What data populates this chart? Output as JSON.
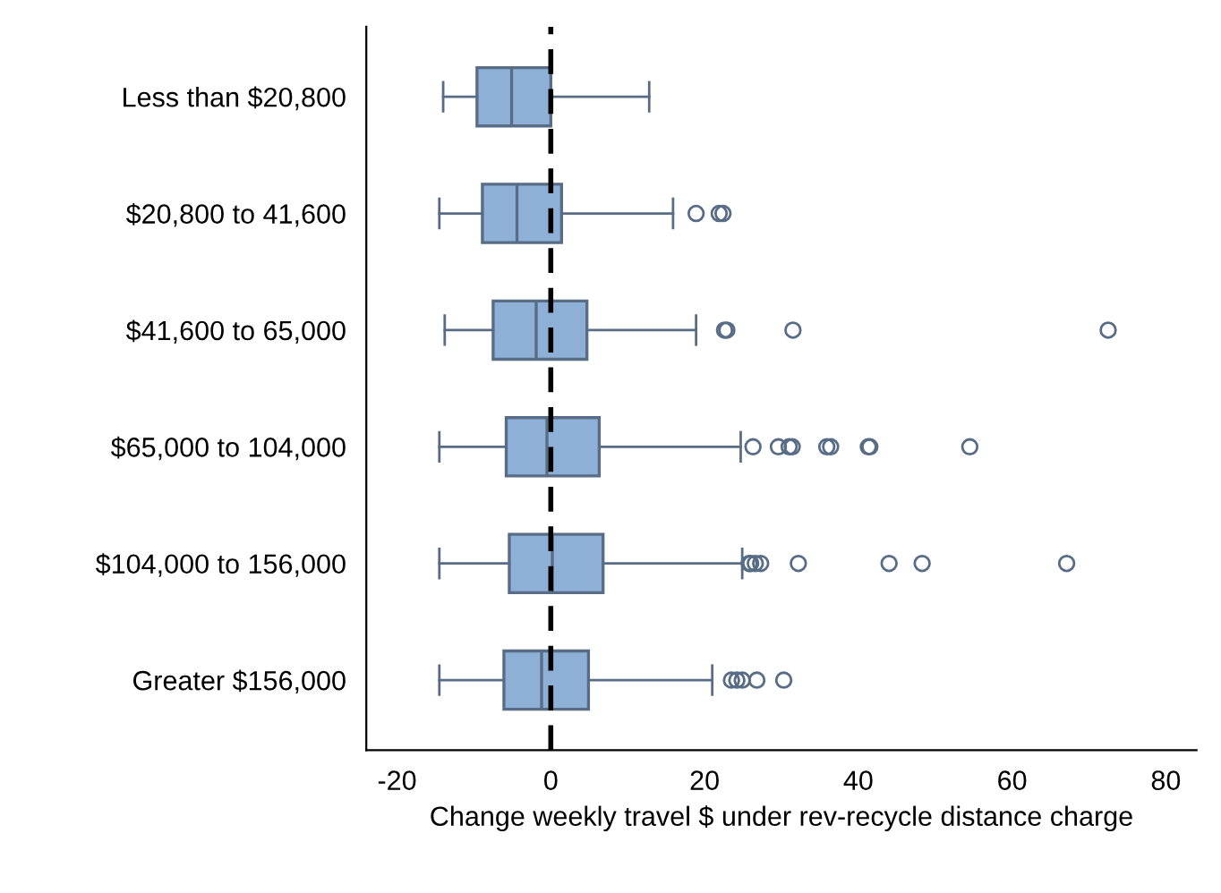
{
  "chart_data": {
    "type": "box",
    "orientation": "horizontal",
    "xlabel": "Change weekly travel $ under rev-recycle distance charge",
    "categories": [
      "Less than $20,800",
      "$20,800 to 41,600",
      "$41,600 to 65,000",
      "$65,000 to 104,000",
      "$104,000 to 156,000",
      "Greater $156,000"
    ],
    "boxes": [
      {
        "low": -14,
        "q1": -9.6,
        "median": -5.1,
        "q3": 0,
        "high": 12.8
      },
      {
        "low": -14.5,
        "q1": -8.9,
        "median": -4.4,
        "q3": 1.4,
        "high": 15.9,
        "outliers": [
          18.9,
          21.9,
          22.4
        ]
      },
      {
        "low": -13.8,
        "q1": -7.5,
        "median": -1.9,
        "q3": 4.7,
        "high": 18.9,
        "outliers": [
          22.6,
          22.9,
          31.5,
          72.5
        ]
      },
      {
        "low": -14.5,
        "q1": -5.8,
        "median": -0.5,
        "q3": 6.3,
        "high": 24.7,
        "outliers": [
          26.3,
          29.6,
          31,
          31.4,
          35.9,
          36.4,
          41.3,
          41.5,
          54.5
        ]
      },
      {
        "low": -14.5,
        "q1": -5.4,
        "median": 0.2,
        "q3": 6.8,
        "high": 24.9,
        "outliers": [
          25.8,
          26,
          26.6,
          27.3,
          32.2,
          44,
          48.3,
          67.1
        ]
      },
      {
        "low": -14.5,
        "q1": -6.1,
        "median": -1.2,
        "q3": 4.9,
        "high": 21,
        "outliers": [
          23.5,
          24.2,
          24.9,
          26.8,
          30.3
        ]
      }
    ],
    "color": "#8eb0d6",
    "xlim": [
      -24,
      84
    ],
    "xticks": [
      -20,
      0,
      20,
      40,
      60,
      80
    ],
    "ref_lines": [
      {
        "axis": "x",
        "value": 0,
        "color": "#000000",
        "line_style": "dashed"
      }
    ],
    "grid": false
  }
}
